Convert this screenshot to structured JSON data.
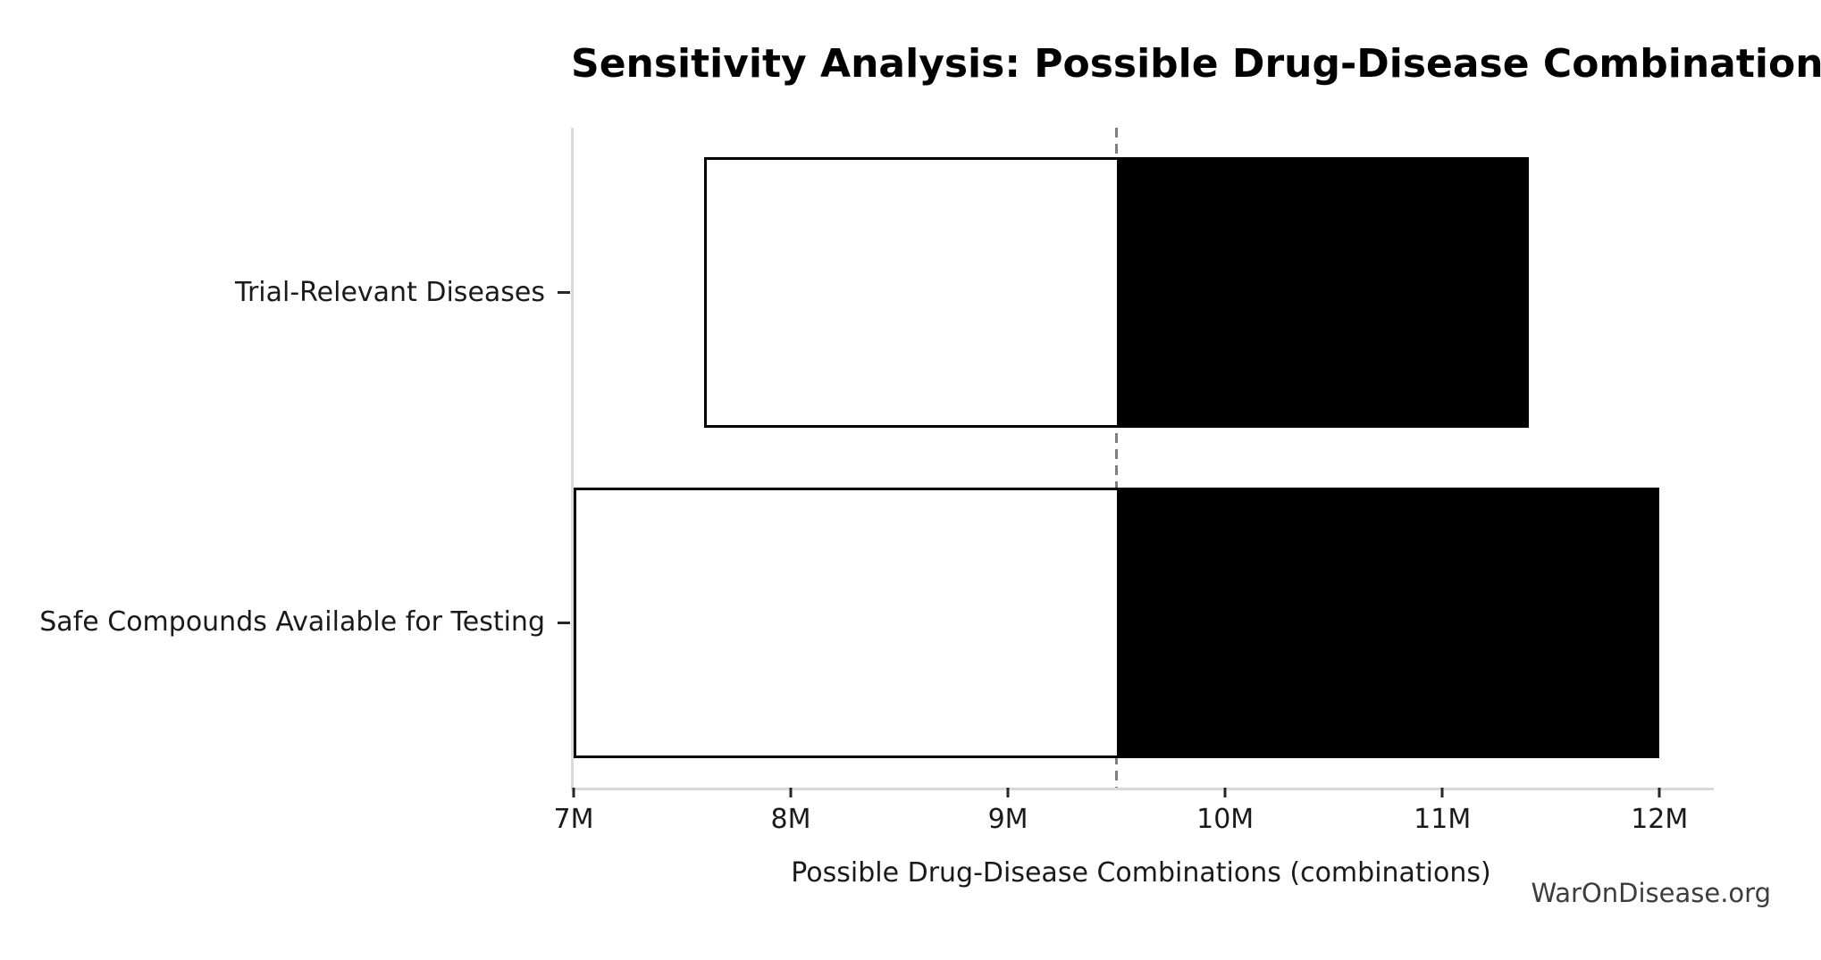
{
  "chart_data": {
    "type": "bar",
    "subtype": "horizontal-tornado-sensitivity",
    "title": "Sensitivity Analysis: Possible Drug-Disease Combinations",
    "xlabel": "Possible Drug-Disease Combinations (combinations)",
    "ylabel": "",
    "watermark": "WarOnDisease.org",
    "categories": [
      "Trial-Relevant Diseases",
      "Safe Compounds Available for Testing"
    ],
    "baseline": 9500000,
    "series": [
      {
        "name": "Low scenario (white segment, low value to baseline)",
        "values": [
          7600000,
          7000000
        ]
      },
      {
        "name": "High scenario (black segment, baseline to high value)",
        "values": [
          11400000,
          12000000
        ]
      }
    ],
    "xlim": [
      7000000,
      12250000
    ],
    "x_tick_values": [
      7000000,
      8000000,
      9000000,
      10000000,
      11000000,
      12000000
    ],
    "x_tick_labels": [
      "7M",
      "8M",
      "9M",
      "10M",
      "11M",
      "12M"
    ],
    "grid": false,
    "legend": false,
    "colors": {
      "low_fill": "#ffffff",
      "high_fill": "#000000",
      "bar_edge": "#000000",
      "baseline_line": "#7f7f7f",
      "spine": "#d9d9d9",
      "tick": "#262626",
      "text": "#1a1a1a",
      "watermark": "#3d3d3d",
      "background": "#ffffff"
    }
  }
}
